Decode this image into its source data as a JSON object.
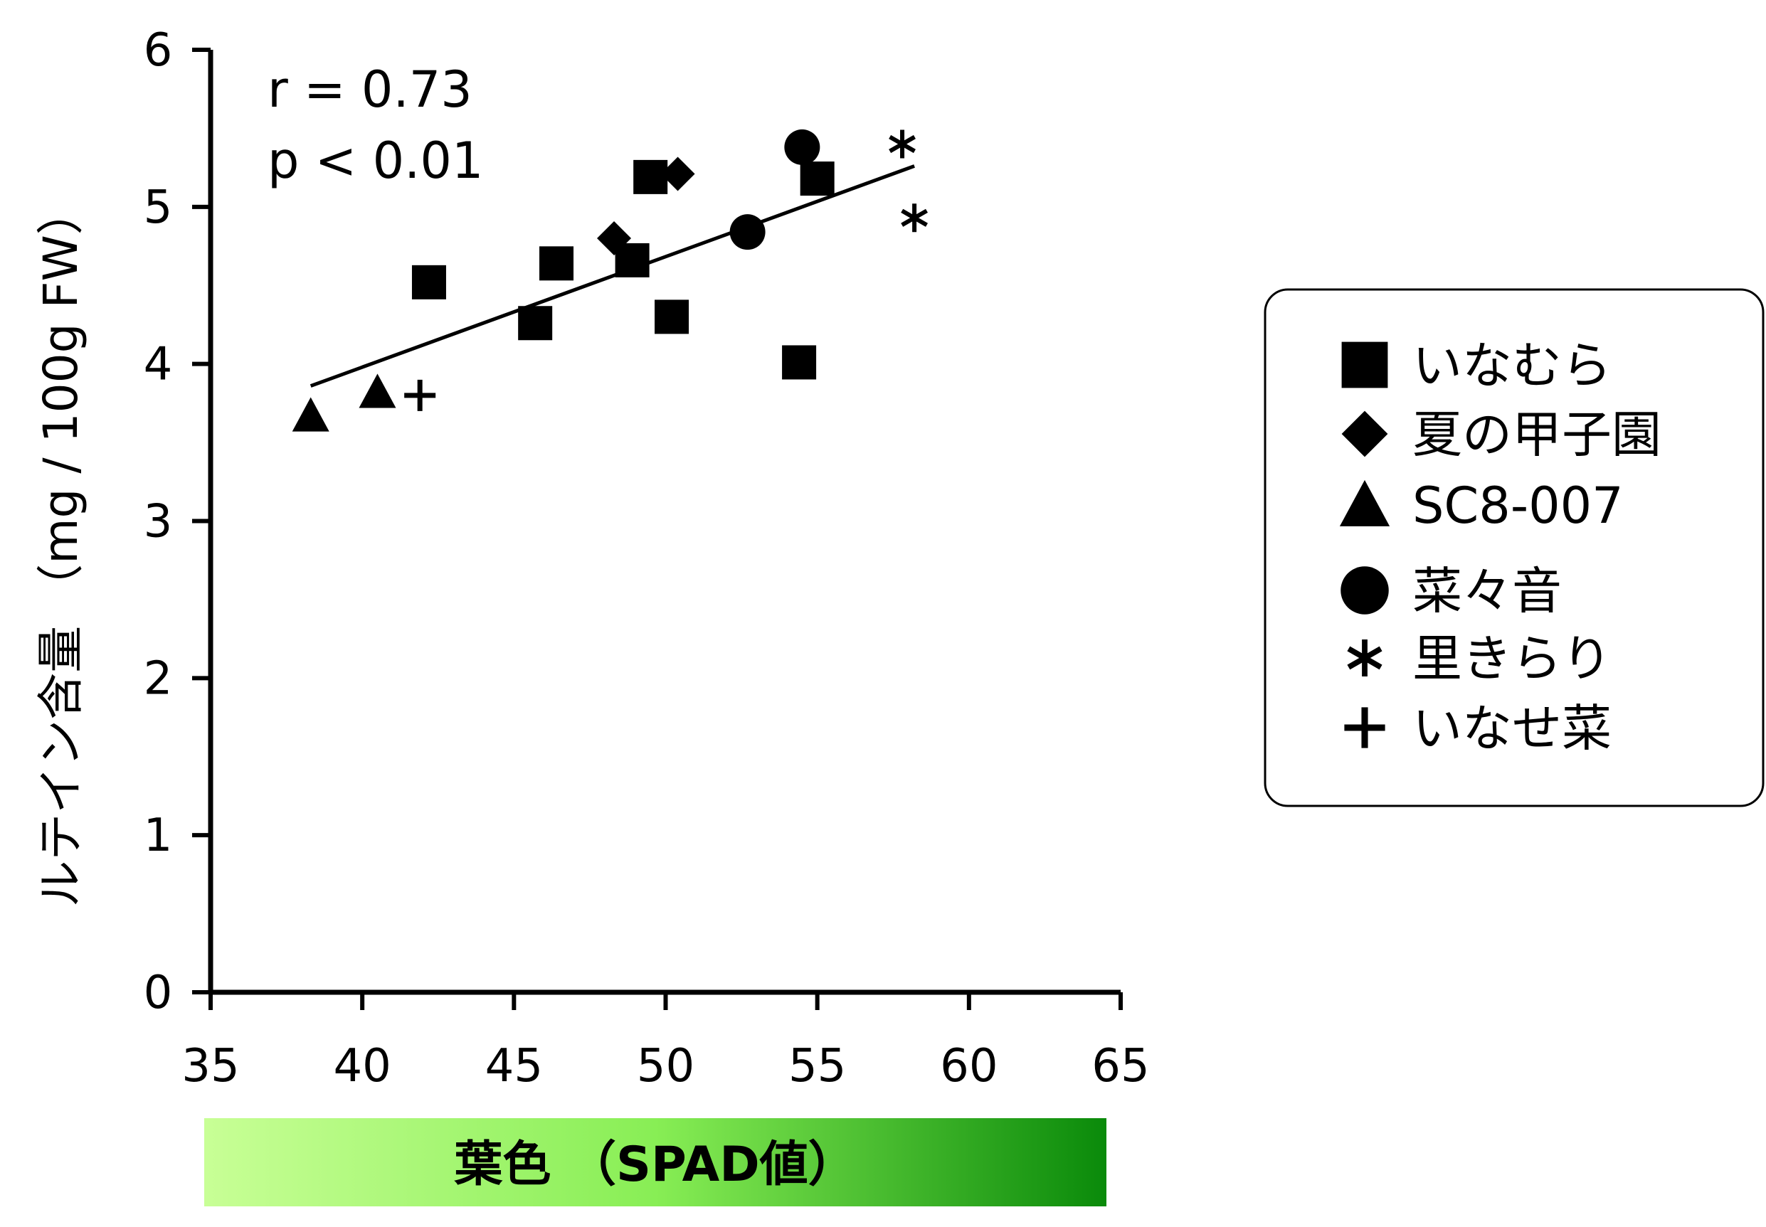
{
  "chart_data": {
    "type": "scatter",
    "xlabel": "葉色 （SPAD値）",
    "ylabel": "ルテイン含量 （mg / 100g FW）",
    "xlim": [
      35,
      65
    ],
    "ylim": [
      0,
      6
    ],
    "x_ticks": [
      "35",
      "40",
      "45",
      "50",
      "55",
      "60",
      "65"
    ],
    "y_ticks": [
      "0",
      "1",
      "2",
      "3",
      "4",
      "5",
      "6"
    ],
    "grid": false,
    "legend_position": "right",
    "annotations": [
      "r = 0.73",
      "p < 0.01"
    ],
    "colors": {
      "gradient_start": "#c8ff96",
      "gradient_mid": "#88ee55",
      "gradient_end": "#0a8a0a",
      "marker": "#000000"
    },
    "series": [
      {
        "name": "いなむら",
        "marker": "square",
        "points": [
          [
            42.2,
            4.52
          ],
          [
            46.4,
            4.64
          ],
          [
            45.7,
            4.26
          ],
          [
            48.9,
            4.66
          ],
          [
            49.5,
            5.19
          ],
          [
            50.2,
            4.3
          ],
          [
            54.4,
            4.01
          ],
          [
            55.0,
            5.18
          ]
        ]
      },
      {
        "name": "夏の甲子園",
        "marker": "diamond",
        "points": [
          [
            48.3,
            4.8
          ],
          [
            50.4,
            5.21
          ]
        ]
      },
      {
        "name": "SC8-007",
        "marker": "triangle",
        "points": [
          [
            38.3,
            3.67
          ],
          [
            40.5,
            3.82
          ]
        ]
      },
      {
        "name": "菜々音",
        "marker": "circle",
        "points": [
          [
            52.7,
            4.84
          ],
          [
            54.5,
            5.38
          ]
        ]
      },
      {
        "name": "里きらり",
        "marker": "asterisk",
        "points": [
          [
            57.8,
            5.4
          ],
          [
            58.2,
            4.93
          ]
        ]
      },
      {
        "name": "いなせ菜",
        "marker": "plus",
        "points": [
          [
            41.9,
            3.8
          ]
        ]
      }
    ],
    "trendline": {
      "x": [
        38.3,
        58.2
      ],
      "y": [
        3.86,
        5.26
      ]
    }
  }
}
